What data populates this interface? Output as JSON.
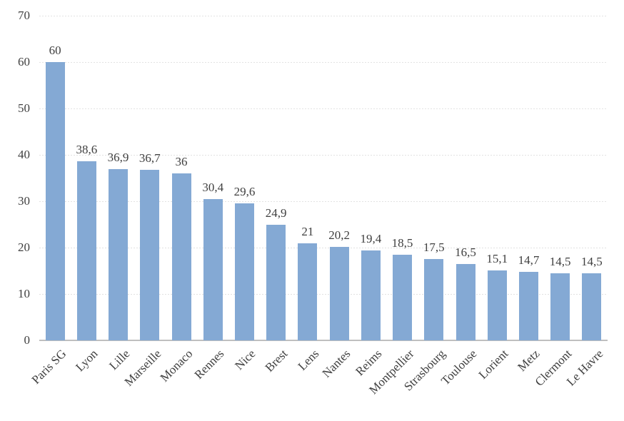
{
  "chart_data": {
    "type": "bar",
    "title": "",
    "xlabel": "",
    "ylabel": "",
    "categories": [
      "Paris SG",
      "Lyon",
      "Lille",
      "Marseille",
      "Monaco",
      "Rennes",
      "Nice",
      "Brest",
      "Lens",
      "Nantes",
      "Reims",
      "Montpellier",
      "Strasbourg",
      "Toulouse",
      "Lorient",
      "Metz",
      "Clermont",
      "Le Havre"
    ],
    "values": [
      60,
      38.6,
      36.9,
      36.7,
      36,
      30.4,
      29.6,
      24.9,
      21,
      20.2,
      19.4,
      18.5,
      17.5,
      16.5,
      15.1,
      14.7,
      14.5,
      14.5
    ],
    "value_labels": [
      "60",
      "38,6",
      "36,9",
      "36,7",
      "36",
      "30,4",
      "29,6",
      "24,9",
      "21",
      "20,2",
      "19,4",
      "18,5",
      "17,5",
      "16,5",
      "15,1",
      "14,7",
      "14,5",
      "14,5"
    ],
    "ylim": [
      0,
      70
    ],
    "ytick_step": 10,
    "ytick_labels": [
      "0",
      "10",
      "20",
      "30",
      "40",
      "50",
      "60",
      "70"
    ],
    "category_label_rotation_deg": 45,
    "grid": true,
    "legend": false,
    "colors": {
      "bar_fill": "#84a9d4",
      "gridline": "#e2e2e2",
      "axis_line": "#bfbfbf",
      "value_text": "#3f3f3f",
      "tick_text": "#404040",
      "background": "#ffffff"
    }
  }
}
